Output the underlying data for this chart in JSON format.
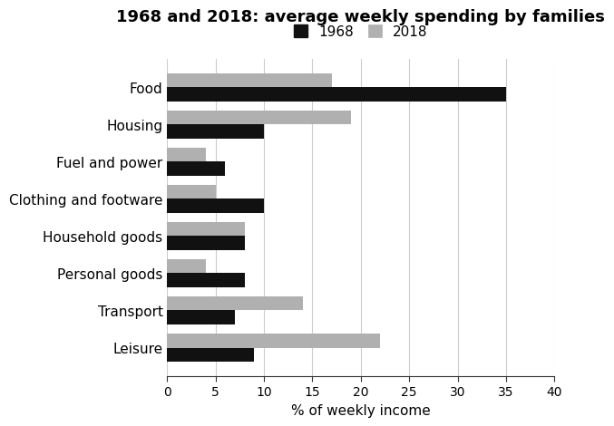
{
  "title": "1968 and 2018: average weekly spending by families",
  "categories": [
    "Food",
    "Housing",
    "Fuel and power",
    "Clothing and footware",
    "Household goods",
    "Personal goods",
    "Transport",
    "Leisure"
  ],
  "values_1968": [
    35,
    10,
    6,
    10,
    8,
    8,
    7,
    9
  ],
  "values_2018": [
    17,
    19,
    4,
    5,
    8,
    4,
    14,
    22
  ],
  "color_1968": "#111111",
  "color_2018": "#b0b0b0",
  "xlabel": "% of weekly income",
  "xlim": [
    0,
    40
  ],
  "xticks": [
    0,
    5,
    10,
    15,
    20,
    25,
    30,
    35,
    40
  ],
  "legend_labels": [
    "1968",
    "2018"
  ],
  "bar_height": 0.38,
  "background_color": "#ffffff",
  "grid_color": "#cccccc",
  "title_fontsize": 13,
  "label_fontsize": 11,
  "tick_fontsize": 10,
  "xlabel_fontsize": 11
}
